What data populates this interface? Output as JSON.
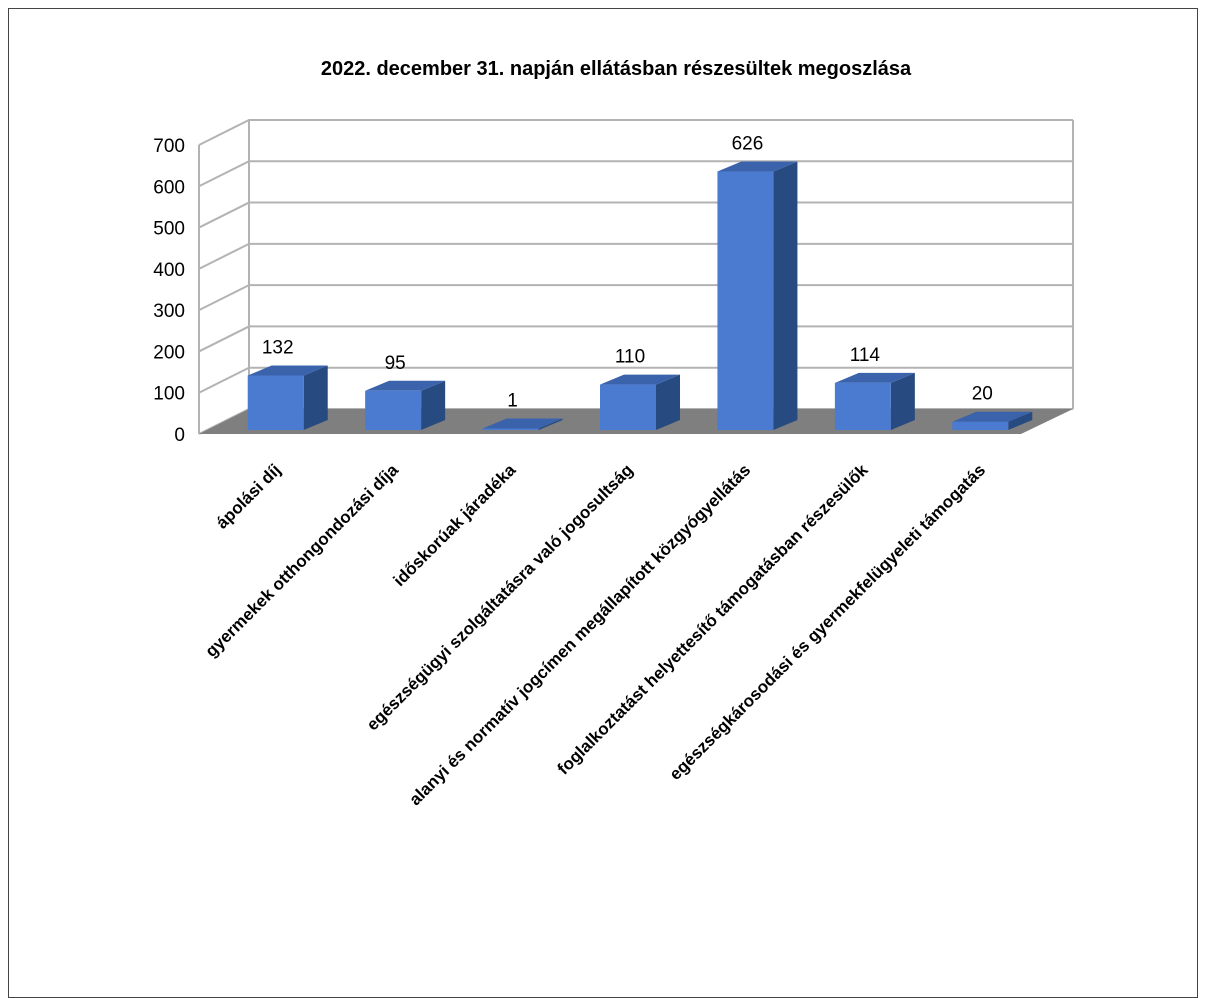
{
  "chart_data": {
    "type": "bar",
    "title": "2022. december 31. napján ellátásban részesültek megoszlása",
    "categories": [
      "ápolási díj",
      "gyermekek otthongondozási díja",
      "időskorúak járadéka",
      "egészségügyi szolgáltatásra való jogosultság",
      "alanyi és normatív jogcímen megállapított közgyógyellátás",
      "foglalkoztatást helyettesítő támogatásban részesülők",
      "egészségkárosodási és gyermekfelügyeleti támogatás"
    ],
    "values": [
      132,
      95,
      1,
      110,
      626,
      114,
      20
    ],
    "value_labels": [
      "132",
      "95",
      "1",
      "110",
      "626",
      "114",
      "20"
    ],
    "y_ticks": [
      "0",
      "100",
      "200",
      "300",
      "400",
      "500",
      "600",
      "700"
    ],
    "ylim": [
      0,
      700
    ],
    "xlabel": "",
    "ylabel": "",
    "grid": true,
    "legend": "none",
    "style": "3d",
    "colors": {
      "bar_front": "#4a7bd0",
      "bar_side": "#274a80",
      "bar_top": "#3a63ab",
      "floor": "#7f7f7f",
      "grid": "#b3b3b3"
    }
  }
}
